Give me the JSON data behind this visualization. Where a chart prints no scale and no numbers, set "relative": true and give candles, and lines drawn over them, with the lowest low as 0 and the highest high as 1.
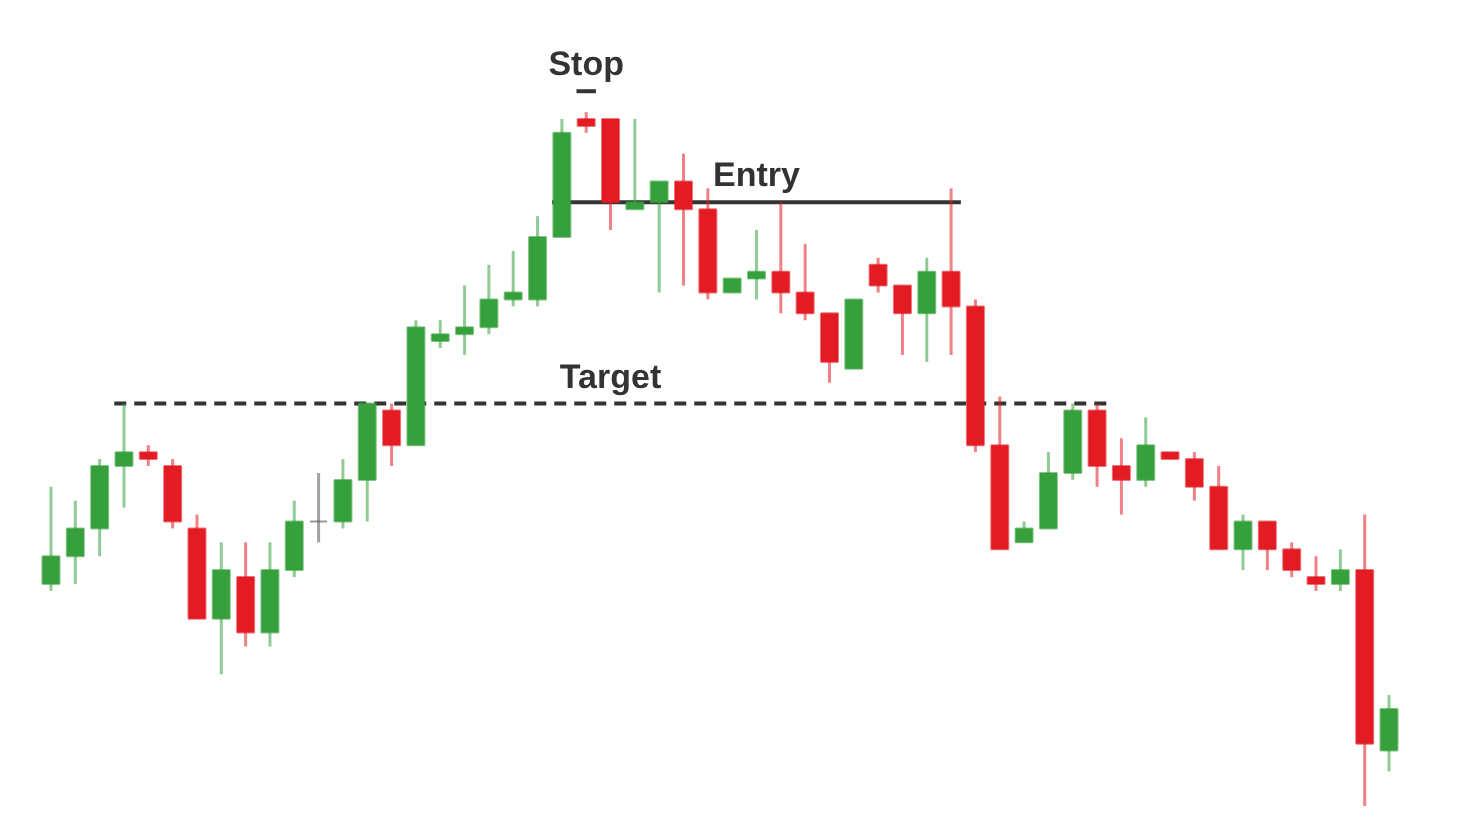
{
  "chart_data": {
    "type": "candlestick",
    "relative": true,
    "categories": [
      null,
      null,
      null,
      null,
      null,
      null,
      null,
      null,
      null,
      null,
      null,
      null,
      null,
      null,
      null,
      null,
      null,
      null,
      null,
      null,
      null,
      null,
      null,
      null,
      null,
      null,
      null,
      null,
      null,
      null,
      null,
      null,
      null,
      null,
      null,
      null,
      null,
      null,
      null,
      null,
      null,
      null,
      null,
      null,
      null,
      null,
      null,
      null,
      null,
      null,
      null,
      null,
      null,
      null,
      null,
      null
    ],
    "ohlc": [
      [
        0.32,
        0.46,
        0.31,
        0.36
      ],
      [
        0.36,
        0.44,
        0.32,
        0.4
      ],
      [
        0.4,
        0.5,
        0.36,
        0.49
      ],
      [
        0.49,
        0.58,
        0.43,
        0.51
      ],
      [
        0.51,
        0.52,
        0.49,
        0.5
      ],
      [
        0.49,
        0.5,
        0.4,
        0.41
      ],
      [
        0.4,
        0.42,
        0.27,
        0.27
      ],
      [
        0.27,
        0.38,
        0.19,
        0.34
      ],
      [
        0.33,
        0.38,
        0.23,
        0.25
      ],
      [
        0.25,
        0.38,
        0.23,
        0.34
      ],
      [
        0.34,
        0.44,
        0.33,
        0.41
      ],
      [
        0.41,
        0.48,
        0.38,
        0.41
      ],
      [
        0.41,
        0.5,
        0.4,
        0.47
      ],
      [
        0.47,
        0.58,
        0.41,
        0.58
      ],
      [
        0.57,
        0.58,
        0.49,
        0.52
      ],
      [
        0.52,
        0.7,
        0.52,
        0.69
      ],
      [
        0.67,
        0.7,
        0.66,
        0.68
      ],
      [
        0.68,
        0.75,
        0.65,
        0.69
      ],
      [
        0.69,
        0.78,
        0.68,
        0.73
      ],
      [
        0.73,
        0.8,
        0.72,
        0.74
      ],
      [
        0.73,
        0.85,
        0.72,
        0.82
      ],
      [
        0.82,
        0.99,
        0.82,
        0.97
      ],
      [
        0.99,
        1.0,
        0.97,
        0.98
      ],
      [
        0.99,
        0.99,
        0.83,
        0.87
      ],
      [
        0.86,
        0.99,
        0.86,
        0.87
      ],
      [
        0.87,
        0.9,
        0.74,
        0.9
      ],
      [
        0.9,
        0.94,
        0.75,
        0.86
      ],
      [
        0.86,
        0.89,
        0.73,
        0.74
      ],
      [
        0.74,
        0.76,
        0.74,
        0.76
      ],
      [
        0.76,
        0.83,
        0.73,
        0.77
      ],
      [
        0.77,
        0.87,
        0.71,
        0.74
      ],
      [
        0.74,
        0.81,
        0.7,
        0.71
      ],
      [
        0.71,
        0.71,
        0.61,
        0.64
      ],
      [
        0.63,
        0.73,
        0.63,
        0.73
      ],
      [
        0.78,
        0.79,
        0.74,
        0.75
      ],
      [
        0.75,
        0.75,
        0.65,
        0.71
      ],
      [
        0.71,
        0.79,
        0.64,
        0.77
      ],
      [
        0.77,
        0.89,
        0.65,
        0.72
      ],
      [
        0.72,
        0.73,
        0.51,
        0.52
      ],
      [
        0.52,
        0.59,
        0.37,
        0.37
      ],
      [
        0.38,
        0.41,
        0.38,
        0.4
      ],
      [
        0.4,
        0.51,
        0.4,
        0.48
      ],
      [
        0.48,
        0.58,
        0.47,
        0.57
      ],
      [
        0.57,
        0.58,
        0.46,
        0.49
      ],
      [
        0.49,
        0.53,
        0.42,
        0.47
      ],
      [
        0.47,
        0.56,
        0.46,
        0.52
      ],
      [
        0.51,
        0.51,
        0.5,
        0.5
      ],
      [
        0.5,
        0.51,
        0.44,
        0.46
      ],
      [
        0.46,
        0.49,
        0.37,
        0.37
      ],
      [
        0.37,
        0.42,
        0.34,
        0.41
      ],
      [
        0.41,
        0.41,
        0.34,
        0.37
      ],
      [
        0.37,
        0.38,
        0.33,
        0.34
      ],
      [
        0.33,
        0.36,
        0.31,
        0.32
      ],
      [
        0.32,
        0.37,
        0.31,
        0.34
      ],
      [
        0.34,
        0.42,
        0.0,
        0.09
      ],
      [
        0.08,
        0.16,
        0.05,
        0.14
      ]
    ],
    "colors": [
      "#35a03c",
      "#35a03c",
      "#35a03c",
      "#35a03c",
      "#e31b23",
      "#e31b23",
      "#e31b23",
      "#35a03c",
      "#e31b23",
      "#35a03c",
      "#35a03c",
      "#555555",
      "#35a03c",
      "#35a03c",
      "#e31b23",
      "#35a03c",
      "#35a03c",
      "#35a03c",
      "#35a03c",
      "#35a03c",
      "#35a03c",
      "#35a03c",
      "#e31b23",
      "#e31b23",
      "#35a03c",
      "#35a03c",
      "#e31b23",
      "#e31b23",
      "#35a03c",
      "#35a03c",
      "#e31b23",
      "#e31b23",
      "#e31b23",
      "#35a03c",
      "#e31b23",
      "#e31b23",
      "#35a03c",
      "#e31b23",
      "#e31b23",
      "#e31b23",
      "#35a03c",
      "#35a03c",
      "#35a03c",
      "#e31b23",
      "#e31b23",
      "#35a03c",
      "#e31b23",
      "#e31b23",
      "#e31b23",
      "#35a03c",
      "#e31b23",
      "#e31b23",
      "#e31b23",
      "#35a03c",
      "#e31b23",
      "#35a03c"
    ],
    "ref_lines": [
      {
        "axis": "y",
        "value": 1.03,
        "label": "Stop",
        "color": "#333333",
        "line_style": "solid"
      },
      {
        "axis": "y",
        "value": 0.87,
        "label": "Entry",
        "color": "#333333",
        "line_style": "solid"
      },
      {
        "axis": "y",
        "value": 0.58,
        "label": "Target",
        "color": "#333333",
        "line_style": "dashed"
      }
    ]
  }
}
